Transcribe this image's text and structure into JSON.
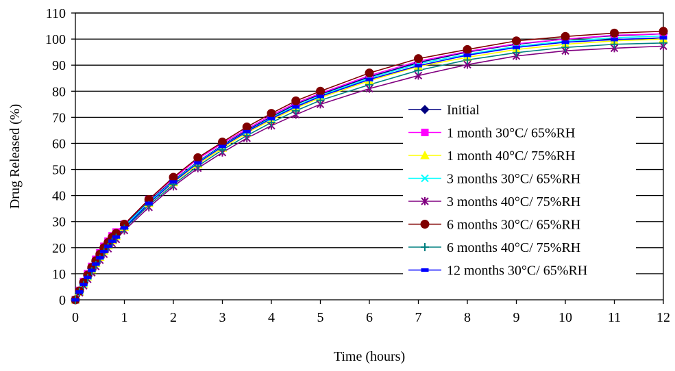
{
  "chart_data": {
    "type": "line",
    "title": "",
    "xlabel": "Time (hours)",
    "ylabel": "Drug Released (%)",
    "xlim": [
      0,
      12
    ],
    "ylim": [
      0,
      110
    ],
    "xticks": [
      0,
      1,
      2,
      3,
      4,
      5,
      6,
      7,
      8,
      9,
      10,
      11,
      12
    ],
    "yticks": [
      0,
      10,
      20,
      30,
      40,
      50,
      60,
      70,
      80,
      90,
      100,
      110
    ],
    "grid": "horizontal",
    "legend_position": "right",
    "x": [
      0,
      0.083,
      0.167,
      0.25,
      0.333,
      0.417,
      0.5,
      0.583,
      0.667,
      0.75,
      0.833,
      1,
      1.5,
      2,
      2.5,
      3,
      3.5,
      4,
      4.5,
      5,
      6,
      7,
      8,
      9,
      10,
      11,
      12
    ],
    "series": [
      {
        "name": "Initial",
        "color": "#000080",
        "marker": "diamond",
        "values": [
          0,
          3.3,
          6.5,
          9.2,
          12,
          14.5,
          17,
          19.5,
          21.5,
          23.5,
          25,
          28.5,
          37.8,
          45.8,
          53,
          59.3,
          65,
          70.2,
          75,
          78.8,
          85.5,
          91,
          95,
          98,
          100,
          101.3,
          102
        ]
      },
      {
        "name": "1 month 30°C/ 65%RH",
        "color": "#ff00ff",
        "marker": "square",
        "values": [
          0,
          3.6,
          7,
          10,
          12.8,
          15.5,
          18,
          20.5,
          22.5,
          24.5,
          26,
          29,
          38.5,
          46.5,
          54,
          60,
          65.5,
          70.8,
          75.5,
          79.2,
          86,
          91.5,
          95.3,
          98.2,
          100,
          101.5,
          102
        ]
      },
      {
        "name": "1 month 40°C/ 75%RH",
        "color": "#ffff00",
        "marker": "triangle",
        "values": [
          0,
          3.1,
          6.1,
          8.9,
          11.6,
          14,
          16.4,
          18.8,
          20.8,
          22.8,
          24.4,
          27.9,
          37,
          45,
          52,
          58.2,
          64,
          69,
          73.5,
          77.5,
          84,
          89.5,
          93,
          96,
          98,
          99.3,
          100
        ]
      },
      {
        "name": "3 months 30°C/ 65%RH",
        "color": "#00ffff",
        "marker": "x",
        "values": [
          0,
          3.2,
          6.3,
          9,
          11.8,
          14.2,
          16.7,
          19.2,
          21.2,
          23.2,
          24.8,
          28.2,
          37.5,
          45.5,
          52.8,
          59,
          64.6,
          69.8,
          74.4,
          78.3,
          85,
          90.5,
          94.2,
          97.2,
          99.2,
          100.5,
          101.2
        ]
      },
      {
        "name": "3 months 40°C/ 75%RH",
        "color": "#800080",
        "marker": "star",
        "values": [
          0,
          2.7,
          5.4,
          7.9,
          10.4,
          12.8,
          15.2,
          17.5,
          19.6,
          21.6,
          23.2,
          26.6,
          35.5,
          43.5,
          50.5,
          56.5,
          62,
          66.8,
          71,
          75,
          81,
          86,
          90.2,
          93.5,
          95.5,
          96.5,
          97.3
        ]
      },
      {
        "name": "6 months 30°C/ 65%RH",
        "color": "#800000",
        "marker": "circle",
        "values": [
          0,
          3.4,
          6.7,
          9.5,
          12.4,
          15,
          17.5,
          20,
          22,
          24,
          25.5,
          29,
          38.5,
          47,
          54.5,
          60.5,
          66.3,
          71.5,
          76.3,
          80,
          87,
          92.5,
          96,
          99.3,
          101,
          102.3,
          103
        ]
      },
      {
        "name": "6 months 40°C/ 75%RH",
        "color": "#008080",
        "marker": "plus",
        "values": [
          0,
          2.9,
          5.7,
          8.4,
          11,
          13.4,
          15.8,
          18.2,
          20.2,
          22.2,
          23.8,
          27.3,
          36.3,
          44.2,
          51.3,
          57.5,
          63,
          68,
          72.5,
          76.5,
          82.5,
          88,
          92,
          94.8,
          96.8,
          98,
          98.5
        ]
      },
      {
        "name": "12 months 30°C/ 65%RH",
        "color": "#0000ff",
        "marker": "dash",
        "values": [
          0,
          3,
          5.9,
          8.6,
          11.3,
          13.7,
          16.1,
          18.5,
          20.5,
          22.5,
          24.1,
          27.6,
          37,
          45.2,
          52.5,
          58.8,
          64.5,
          69.5,
          74,
          78,
          84.5,
          89.8,
          93.8,
          96.8,
          98.8,
          99.8,
          100.5
        ]
      }
    ]
  }
}
